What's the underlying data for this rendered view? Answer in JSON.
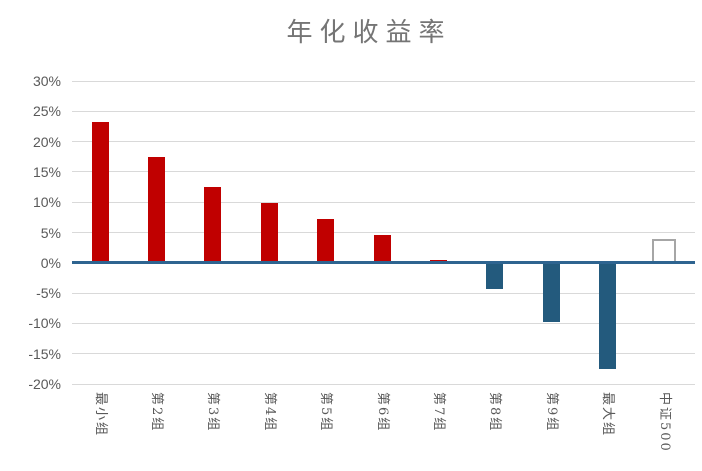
{
  "page": {
    "background": "#ffffff"
  },
  "chart_data": {
    "type": "bar",
    "title": "年化收益率",
    "categories": [
      "最小组",
      "第2组",
      "第3组",
      "第4组",
      "第5组",
      "第6组",
      "第7组",
      "第8组",
      "第9组",
      "最大组",
      "中证500"
    ],
    "values": [
      23.2,
      17.5,
      12.5,
      9.8,
      7.3,
      4.6,
      0.5,
      -4.3,
      -9.7,
      -17.6,
      4.0
    ],
    "value_unit": "percent",
    "bar_styles": [
      "positive",
      "positive",
      "positive",
      "positive",
      "positive",
      "positive",
      "positive",
      "negative",
      "negative",
      "negative",
      "benchmark"
    ],
    "ylim": [
      -20,
      30
    ],
    "ytick_step": 5,
    "ytick_labels": [
      "30%",
      "25%",
      "20%",
      "15%",
      "10%",
      "5%",
      "0%",
      "-5%",
      "-10%",
      "-15%",
      "-20%"
    ],
    "xlabel": "",
    "ylabel": "",
    "grid": true,
    "legend_position": "none",
    "colors": {
      "positive_bar": "#C00000",
      "negative_bar": "#235A7D",
      "benchmark_fill": "#FFFFFF",
      "benchmark_border": "#A6A6A6",
      "zero_axis": "#2E6490",
      "gridline": "#D9D9D9",
      "tick_label": "#595959",
      "title": "#757575"
    }
  }
}
